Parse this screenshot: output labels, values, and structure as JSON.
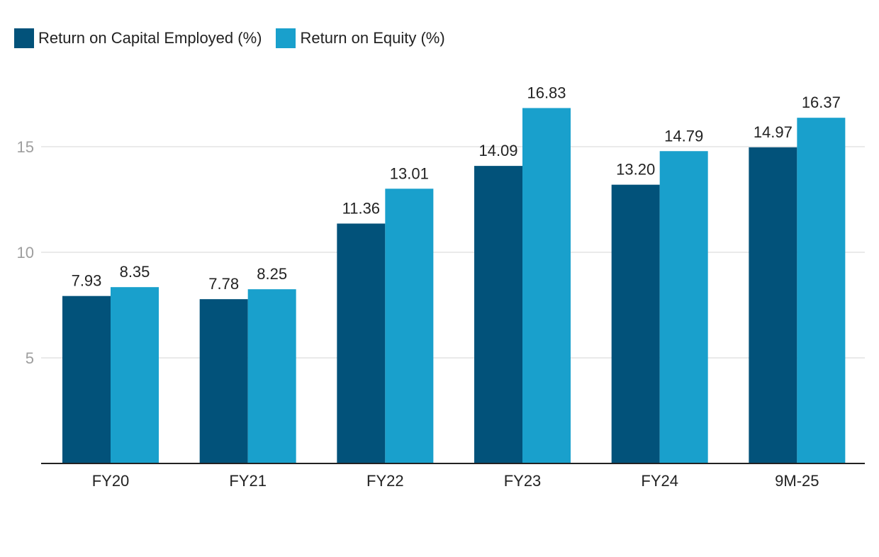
{
  "chart_data": {
    "type": "bar",
    "categories": [
      "FY20",
      "FY21",
      "FY22",
      "FY23",
      "FY24",
      "9M-25"
    ],
    "series": [
      {
        "name": "Return on Capital Employed (%)",
        "color": "#02527a",
        "values": [
          7.93,
          7.78,
          11.36,
          14.09,
          13.2,
          14.97
        ],
        "labels": [
          "7.93",
          "7.78",
          "11.36",
          "14.09",
          "13.20",
          "14.97"
        ]
      },
      {
        "name": "Return on Equity (%)",
        "color": "#19a0cc",
        "values": [
          8.35,
          8.25,
          13.01,
          16.83,
          14.79,
          16.37
        ],
        "labels": [
          "8.35",
          "8.25",
          "13.01",
          "16.83",
          "14.79",
          "16.37"
        ]
      }
    ],
    "yticks": [
      5,
      10,
      15
    ],
    "ylim": [
      0,
      20
    ],
    "grid": true,
    "legend": "top-left"
  }
}
